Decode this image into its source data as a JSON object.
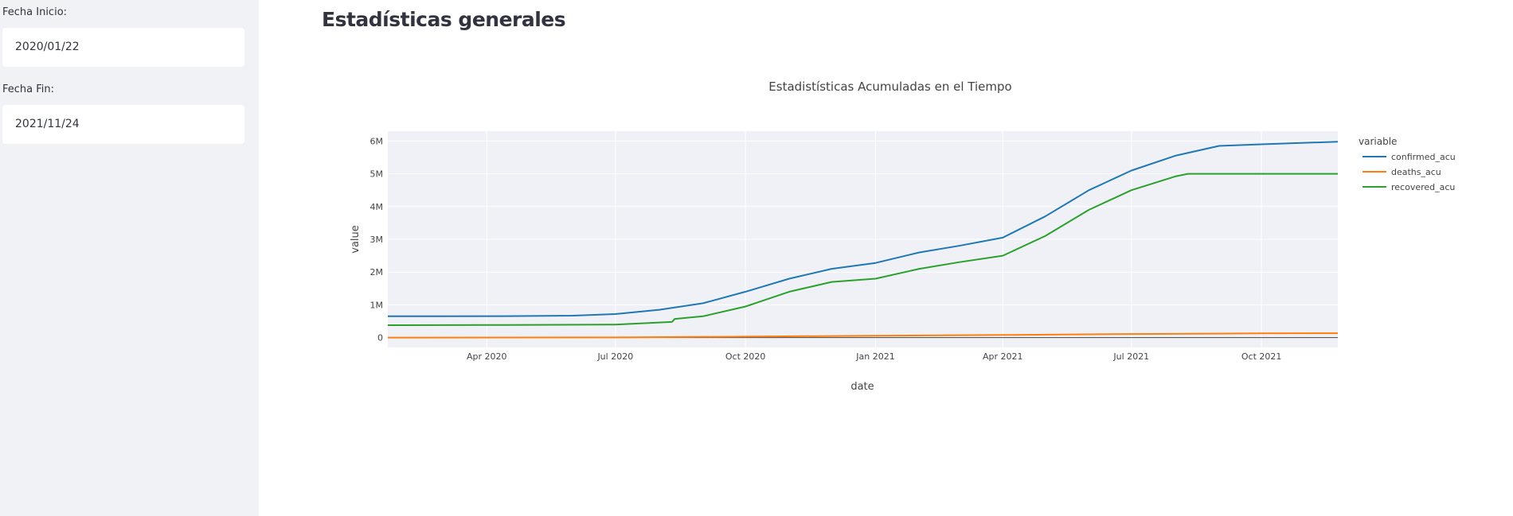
{
  "sidebar": {
    "start_label": "Fecha Inicio:",
    "start_value": "2020/01/22",
    "end_label": "Fecha Fin:",
    "end_value": "2021/11/24"
  },
  "main": {
    "title": "Estadísticas generales"
  },
  "colors": {
    "confirmed_acu": "#1f77b4",
    "deaths_acu": "#ff7f0e",
    "recovered_acu": "#2ca02c"
  },
  "chart_data": {
    "type": "line",
    "title": "Estadistísticas Acumuladas en el Tiempo",
    "xlabel": "date",
    "ylabel": "value",
    "legend_title": "variable",
    "legend_position": "right",
    "grid": true,
    "xlim": [
      "2020-01-22",
      "2021-11-24"
    ],
    "ylim": [
      -300000,
      6300000
    ],
    "x_ticks": [
      {
        "date": "2020-04-01",
        "label": "Apr 2020"
      },
      {
        "date": "2020-07-01",
        "label": "Jul 2020"
      },
      {
        "date": "2020-10-01",
        "label": "Oct 2020"
      },
      {
        "date": "2021-01-01",
        "label": "Jan 2021"
      },
      {
        "date": "2021-04-01",
        "label": "Apr 2021"
      },
      {
        "date": "2021-07-01",
        "label": "Jul 2021"
      },
      {
        "date": "2021-10-01",
        "label": "Oct 2021"
      }
    ],
    "y_ticks": [
      {
        "value": 0,
        "label": "0"
      },
      {
        "value": 1000000,
        "label": "1M"
      },
      {
        "value": 2000000,
        "label": "2M"
      },
      {
        "value": 3000000,
        "label": "3M"
      },
      {
        "value": 4000000,
        "label": "4M"
      },
      {
        "value": 5000000,
        "label": "5M"
      },
      {
        "value": 6000000,
        "label": "6M"
      }
    ],
    "series": [
      {
        "name": "confirmed_acu",
        "color": "#1f77b4",
        "points": [
          [
            "2020-01-22",
            650000
          ],
          [
            "2020-03-01",
            650000
          ],
          [
            "2020-04-15",
            655000
          ],
          [
            "2020-06-01",
            670000
          ],
          [
            "2020-07-01",
            720000
          ],
          [
            "2020-08-01",
            850000
          ],
          [
            "2020-09-01",
            1050000
          ],
          [
            "2020-10-01",
            1400000
          ],
          [
            "2020-11-01",
            1800000
          ],
          [
            "2020-12-01",
            2100000
          ],
          [
            "2021-01-01",
            2280000
          ],
          [
            "2021-02-01",
            2600000
          ],
          [
            "2021-03-01",
            2800000
          ],
          [
            "2021-04-01",
            3050000
          ],
          [
            "2021-05-01",
            3700000
          ],
          [
            "2021-06-01",
            4500000
          ],
          [
            "2021-07-01",
            5100000
          ],
          [
            "2021-08-01",
            5550000
          ],
          [
            "2021-09-01",
            5850000
          ],
          [
            "2021-10-01",
            5900000
          ],
          [
            "2021-11-24",
            5980000
          ]
        ]
      },
      {
        "name": "deaths_acu",
        "color": "#ff7f0e",
        "points": [
          [
            "2020-01-22",
            0
          ],
          [
            "2020-07-01",
            5000
          ],
          [
            "2020-10-01",
            30000
          ],
          [
            "2021-01-01",
            60000
          ],
          [
            "2021-04-01",
            80000
          ],
          [
            "2021-07-01",
            110000
          ],
          [
            "2021-10-01",
            130000
          ],
          [
            "2021-11-24",
            135000
          ]
        ]
      },
      {
        "name": "recovered_acu",
        "color": "#2ca02c",
        "points": [
          [
            "2020-01-22",
            380000
          ],
          [
            "2020-04-01",
            385000
          ],
          [
            "2020-07-01",
            400000
          ],
          [
            "2020-08-10",
            480000
          ],
          [
            "2020-08-12",
            570000
          ],
          [
            "2020-09-01",
            650000
          ],
          [
            "2020-10-01",
            950000
          ],
          [
            "2020-11-01",
            1400000
          ],
          [
            "2020-12-01",
            1700000
          ],
          [
            "2021-01-01",
            1800000
          ],
          [
            "2021-02-01",
            2100000
          ],
          [
            "2021-03-01",
            2300000
          ],
          [
            "2021-04-01",
            2500000
          ],
          [
            "2021-05-01",
            3100000
          ],
          [
            "2021-06-01",
            3900000
          ],
          [
            "2021-07-01",
            4500000
          ],
          [
            "2021-08-01",
            4920000
          ],
          [
            "2021-08-10",
            5000000
          ],
          [
            "2021-11-24",
            5000000
          ]
        ]
      }
    ]
  }
}
